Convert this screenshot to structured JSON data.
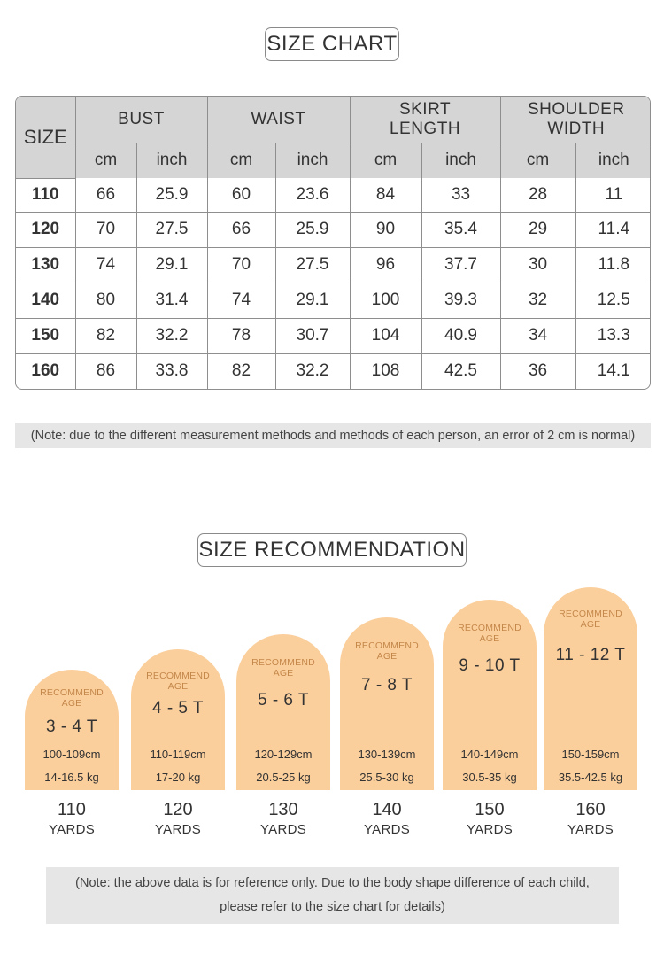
{
  "size_chart": {
    "title": "SIZE CHART",
    "size_header": "SIZE",
    "groups": [
      {
        "label_lines": [
          "BUST"
        ]
      },
      {
        "label_lines": [
          "WAIST"
        ]
      },
      {
        "label_lines": [
          "SKIRT",
          "LENGTH"
        ]
      },
      {
        "label_lines": [
          "SHOULDER",
          "WIDTH"
        ]
      }
    ],
    "unit_cm": "cm",
    "unit_inch": "inch",
    "rows": [
      {
        "size": "110",
        "values": [
          "66",
          "25.9",
          "60",
          "23.6",
          "84",
          "33",
          "28",
          "11"
        ]
      },
      {
        "size": "120",
        "values": [
          "70",
          "27.5",
          "66",
          "25.9",
          "90",
          "35.4",
          "29",
          "11.4"
        ]
      },
      {
        "size": "130",
        "values": [
          "74",
          "29.1",
          "70",
          "27.5",
          "96",
          "37.7",
          "30",
          "11.8"
        ]
      },
      {
        "size": "140",
        "values": [
          "80",
          "31.4",
          "74",
          "29.1",
          "100",
          "39.3",
          "32",
          "12.5"
        ]
      },
      {
        "size": "150",
        "values": [
          "82",
          "32.2",
          "78",
          "30.7",
          "104",
          "40.9",
          "34",
          "13.3"
        ]
      },
      {
        "size": "160",
        "values": [
          "86",
          "33.8",
          "82",
          "32.2",
          "108",
          "42.5",
          "36",
          "14.1"
        ]
      }
    ],
    "note": "(Note: due to the different measurement methods and methods of each person, an error of 2 cm is normal)"
  },
  "recommendation": {
    "title": "SIZE RECOMMENDATION",
    "label_lines": [
      "RECOMMEND",
      "AGE"
    ],
    "yards_label": "YARDS",
    "items": [
      {
        "age": "3 - 4 T",
        "height": "100-109cm",
        "weight": "14-16.5 kg",
        "yard": "110"
      },
      {
        "age": "4 - 5 T",
        "height": "110-119cm",
        "weight": "17-20 kg",
        "yard": "120"
      },
      {
        "age": "5 - 6 T",
        "height": "120-129cm",
        "weight": "20.5-25 kg",
        "yard": "130"
      },
      {
        "age": "7 - 8 T",
        "height": "130-139cm",
        "weight": "25.5-30 kg",
        "yard": "140"
      },
      {
        "age": "9 - 10 T",
        "height": "140-149cm",
        "weight": "30.5-35 kg",
        "yard": "150"
      },
      {
        "age": "11 - 12 T",
        "height": "150-159cm",
        "weight": "35.5-42.5 kg",
        "yard": "160"
      }
    ],
    "note_lines": [
      "(Note: the above data is for reference only. Due to the body shape difference of each child,",
      "please refer to the size chart for details)"
    ]
  },
  "colors": {
    "arch_fill": "#fbcf9c",
    "arch_label": "#c4874a",
    "table_header_bg": "#d5d5d5",
    "note_bg": "#e6e6e6"
  }
}
